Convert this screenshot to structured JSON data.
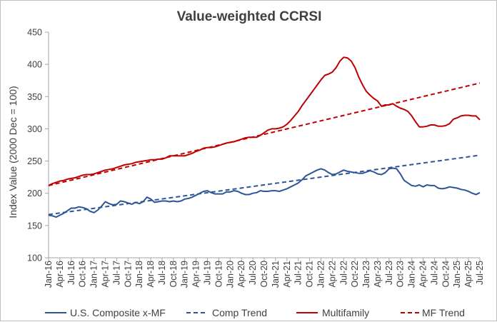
{
  "chart_data": {
    "type": "line",
    "title": "Value-weighted  CCRSI",
    "xlabel": "",
    "ylabel": "Index Value (2000 Dec = 100)",
    "ylim": [
      100,
      450
    ],
    "yticks": [
      "450",
      "400",
      "350",
      "300",
      "250",
      "200",
      "150",
      "100"
    ],
    "ytick_values": [
      450,
      400,
      350,
      300,
      250,
      200,
      150,
      100
    ],
    "xlabels": [
      "Jan-16",
      "Apr-16",
      "Jul-16",
      "Oct-16",
      "Jan-17",
      "Apr-17",
      "Jul-17",
      "Oct-17",
      "Jan-18",
      "Apr-18",
      "Jul-18",
      "Oct-18",
      "Jan-19",
      "Apr-19",
      "Jul-19",
      "Oct-19",
      "Jan-20",
      "Apr-20",
      "Jul-20",
      "Oct-20",
      "Jan-21",
      "Apr-21",
      "Jul-21",
      "Oct-21",
      "Jan-22",
      "Apr-22",
      "Jul-22",
      "Oct-22",
      "Jan-23",
      "Apr-23",
      "Jul-23",
      "Oct-23",
      "Jan-24",
      "Apr-24",
      "Jul-24",
      "Oct-24",
      "Jan-25",
      "Apr-25",
      "Jul-25"
    ],
    "grid": false,
    "legend_position": "bottom",
    "series": [
      {
        "name": "U.S. Composite x-MF",
        "color": "#2e5597",
        "dash": "solid",
        "points": [
          [
            "Jan-16",
            166
          ],
          [
            "Feb-16",
            165
          ],
          [
            "Mar-16",
            163
          ],
          [
            "Apr-16",
            166
          ],
          [
            "May-16",
            169
          ],
          [
            "Jun-16",
            173
          ],
          [
            "Jul-16",
            177
          ],
          [
            "Aug-16",
            177
          ],
          [
            "Sep-16",
            179
          ],
          [
            "Oct-16",
            178
          ],
          [
            "Nov-16",
            176
          ],
          [
            "Dec-16",
            172
          ],
          [
            "Jan-17",
            170
          ],
          [
            "Feb-17",
            174
          ],
          [
            "Mar-17",
            180
          ],
          [
            "Apr-17",
            187
          ],
          [
            "May-17",
            184
          ],
          [
            "Jun-17",
            182
          ],
          [
            "Jul-17",
            183
          ],
          [
            "Aug-17",
            188
          ],
          [
            "Sep-17",
            187
          ],
          [
            "Oct-17",
            185
          ],
          [
            "Nov-17",
            183
          ],
          [
            "Dec-17",
            186
          ],
          [
            "Jan-18",
            184
          ],
          [
            "Feb-18",
            187
          ],
          [
            "Mar-18",
            194
          ],
          [
            "Apr-18",
            191
          ],
          [
            "May-18",
            186
          ],
          [
            "Jun-18",
            187
          ],
          [
            "Jul-18",
            188
          ],
          [
            "Aug-18",
            188
          ],
          [
            "Sep-18",
            187
          ],
          [
            "Oct-18",
            188
          ],
          [
            "Nov-18",
            187
          ],
          [
            "Dec-18",
            188
          ],
          [
            "Jan-19",
            191
          ],
          [
            "Feb-19",
            192
          ],
          [
            "Mar-19",
            194
          ],
          [
            "Apr-19",
            197
          ],
          [
            "May-19",
            200
          ],
          [
            "Jun-19",
            203
          ],
          [
            "Jul-19",
            204
          ],
          [
            "Aug-19",
            201
          ],
          [
            "Sep-19",
            199
          ],
          [
            "Oct-19",
            199
          ],
          [
            "Nov-19",
            199
          ],
          [
            "Dec-19",
            202
          ],
          [
            "Jan-20",
            202
          ],
          [
            "Feb-20",
            204
          ],
          [
            "Mar-20",
            203
          ],
          [
            "Apr-20",
            200
          ],
          [
            "May-20",
            198
          ],
          [
            "Jun-20",
            198
          ],
          [
            "Jul-20",
            200
          ],
          [
            "Aug-20",
            201
          ],
          [
            "Sep-20",
            204
          ],
          [
            "Oct-20",
            203
          ],
          [
            "Nov-20",
            203
          ],
          [
            "Dec-20",
            204
          ],
          [
            "Jan-21",
            204
          ],
          [
            "Feb-21",
            203
          ],
          [
            "Mar-21",
            205
          ],
          [
            "Apr-21",
            207
          ],
          [
            "May-21",
            210
          ],
          [
            "Jun-21",
            213
          ],
          [
            "Jul-21",
            216
          ],
          [
            "Aug-21",
            221
          ],
          [
            "Sep-21",
            227
          ],
          [
            "Oct-21",
            230
          ],
          [
            "Nov-21",
            233
          ],
          [
            "Dec-21",
            236
          ],
          [
            "Jan-22",
            238
          ],
          [
            "Feb-22",
            236
          ],
          [
            "Mar-22",
            232
          ],
          [
            "Apr-22",
            229
          ],
          [
            "May-22",
            230
          ],
          [
            "Jun-22",
            233
          ],
          [
            "Jul-22",
            236
          ],
          [
            "Aug-22",
            234
          ],
          [
            "Sep-22",
            233
          ],
          [
            "Oct-22",
            232
          ],
          [
            "Nov-22",
            231
          ],
          [
            "Dec-22",
            231
          ],
          [
            "Jan-23",
            233
          ],
          [
            "Feb-23",
            235
          ],
          [
            "Mar-23",
            233
          ],
          [
            "Apr-23",
            230
          ],
          [
            "May-23",
            229
          ],
          [
            "Jun-23",
            232
          ],
          [
            "Jul-23",
            238
          ],
          [
            "Aug-23",
            239
          ],
          [
            "Sep-23",
            238
          ],
          [
            "Oct-23",
            230
          ],
          [
            "Nov-23",
            220
          ],
          [
            "Dec-23",
            216
          ],
          [
            "Jan-24",
            212
          ],
          [
            "Feb-24",
            211
          ],
          [
            "Mar-24",
            213
          ],
          [
            "Apr-24",
            210
          ],
          [
            "May-24",
            213
          ],
          [
            "Jun-24",
            212
          ],
          [
            "Jul-24",
            212
          ],
          [
            "Aug-24",
            208
          ],
          [
            "Sep-24",
            207
          ],
          [
            "Oct-24",
            208
          ],
          [
            "Nov-24",
            210
          ],
          [
            "Dec-24",
            209
          ],
          [
            "Jan-25",
            208
          ],
          [
            "Feb-25",
            206
          ],
          [
            "Mar-25",
            205
          ],
          [
            "Apr-25",
            203
          ],
          [
            "May-25",
            200
          ],
          [
            "Jun-25",
            198
          ],
          [
            "Jul-25",
            201
          ]
        ]
      },
      {
        "name": "Comp Trend",
        "color": "#2e5597",
        "dash": "dashed",
        "points": [
          [
            "Jan-16",
            167
          ],
          [
            "Jul-25",
            259
          ]
        ]
      },
      {
        "name": "Multifamily",
        "color": "#c00000",
        "dash": "solid",
        "points": [
          [
            "Jan-16",
            212
          ],
          [
            "Feb-16",
            215
          ],
          [
            "Mar-16",
            217
          ],
          [
            "Apr-16",
            219
          ],
          [
            "May-16",
            220
          ],
          [
            "Jun-16",
            222
          ],
          [
            "Jul-16",
            223
          ],
          [
            "Aug-16",
            224
          ],
          [
            "Sep-16",
            226
          ],
          [
            "Oct-16",
            228
          ],
          [
            "Nov-16",
            229
          ],
          [
            "Dec-16",
            229
          ],
          [
            "Jan-17",
            230
          ],
          [
            "Feb-17",
            232
          ],
          [
            "Mar-17",
            234
          ],
          [
            "Apr-17",
            236
          ],
          [
            "May-17",
            237
          ],
          [
            "Jun-17",
            238
          ],
          [
            "Jul-17",
            240
          ],
          [
            "Aug-17",
            242
          ],
          [
            "Sep-17",
            244
          ],
          [
            "Oct-17",
            245
          ],
          [
            "Nov-17",
            246
          ],
          [
            "Dec-17",
            248
          ],
          [
            "Jan-18",
            249
          ],
          [
            "Feb-18",
            250
          ],
          [
            "Mar-18",
            251
          ],
          [
            "Apr-18",
            252
          ],
          [
            "May-18",
            252
          ],
          [
            "Jun-18",
            253
          ],
          [
            "Jul-18",
            253
          ],
          [
            "Aug-18",
            255
          ],
          [
            "Sep-18",
            258
          ],
          [
            "Oct-18",
            258
          ],
          [
            "Nov-18",
            258
          ],
          [
            "Dec-18",
            258
          ],
          [
            "Jan-19",
            258
          ],
          [
            "Feb-19",
            260
          ],
          [
            "Mar-19",
            262
          ],
          [
            "Apr-19",
            265
          ],
          [
            "May-19",
            267
          ],
          [
            "Jun-19",
            270
          ],
          [
            "Jul-19",
            271
          ],
          [
            "Aug-19",
            271
          ],
          [
            "Sep-19",
            272
          ],
          [
            "Oct-19",
            274
          ],
          [
            "Nov-19",
            276
          ],
          [
            "Dec-19",
            278
          ],
          [
            "Jan-20",
            279
          ],
          [
            "Feb-20",
            280
          ],
          [
            "Mar-20",
            282
          ],
          [
            "Apr-20",
            284
          ],
          [
            "May-20",
            286
          ],
          [
            "Jun-20",
            287
          ],
          [
            "Jul-20",
            287
          ],
          [
            "Aug-20",
            287
          ],
          [
            "Sep-20",
            290
          ],
          [
            "Oct-20",
            294
          ],
          [
            "Nov-20",
            298
          ],
          [
            "Dec-20",
            300
          ],
          [
            "Jan-21",
            300
          ],
          [
            "Feb-21",
            301
          ],
          [
            "Mar-21",
            303
          ],
          [
            "Apr-21",
            307
          ],
          [
            "May-21",
            313
          ],
          [
            "Jun-21",
            320
          ],
          [
            "Jul-21",
            327
          ],
          [
            "Aug-21",
            336
          ],
          [
            "Sep-21",
            344
          ],
          [
            "Oct-21",
            352
          ],
          [
            "Nov-21",
            360
          ],
          [
            "Dec-21",
            368
          ],
          [
            "Jan-22",
            376
          ],
          [
            "Feb-22",
            383
          ],
          [
            "Mar-22",
            385
          ],
          [
            "Apr-22",
            388
          ],
          [
            "May-22",
            395
          ],
          [
            "Jun-22",
            405
          ],
          [
            "Jul-22",
            411
          ],
          [
            "Aug-22",
            410
          ],
          [
            "Sep-22",
            405
          ],
          [
            "Oct-22",
            395
          ],
          [
            "Nov-22",
            380
          ],
          [
            "Dec-22",
            368
          ],
          [
            "Jan-23",
            358
          ],
          [
            "Feb-23",
            352
          ],
          [
            "Mar-23",
            347
          ],
          [
            "Apr-23",
            343
          ],
          [
            "May-23",
            335
          ],
          [
            "Jun-23",
            337
          ],
          [
            "Jul-23",
            337
          ],
          [
            "Aug-23",
            339
          ],
          [
            "Sep-23",
            335
          ],
          [
            "Oct-23",
            332
          ],
          [
            "Nov-23",
            330
          ],
          [
            "Dec-23",
            327
          ],
          [
            "Jan-24",
            320
          ],
          [
            "Feb-24",
            311
          ],
          [
            "Mar-24",
            303
          ],
          [
            "Apr-24",
            303
          ],
          [
            "May-24",
            304
          ],
          [
            "Jun-24",
            306
          ],
          [
            "Jul-24",
            306
          ],
          [
            "Aug-24",
            304
          ],
          [
            "Sep-24",
            304
          ],
          [
            "Oct-24",
            305
          ],
          [
            "Nov-24",
            308
          ],
          [
            "Dec-24",
            315
          ],
          [
            "Jan-25",
            317
          ],
          [
            "Feb-25",
            320
          ],
          [
            "Mar-25",
            321
          ],
          [
            "Apr-25",
            321
          ],
          [
            "May-25",
            320
          ],
          [
            "Jun-25",
            320
          ],
          [
            "Jul-25",
            314
          ]
        ]
      },
      {
        "name": "MF Trend",
        "color": "#c00000",
        "dash": "dashed",
        "points": [
          [
            "Jan-16",
            212
          ],
          [
            "Jul-25",
            371
          ]
        ]
      }
    ]
  }
}
